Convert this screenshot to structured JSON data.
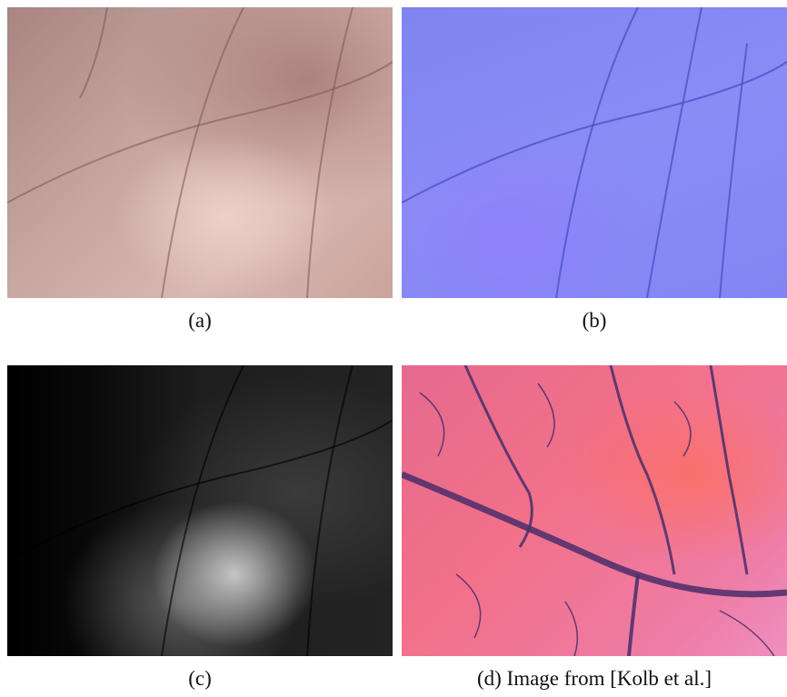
{
  "figure": {
    "panels": [
      {
        "caption": "(a)"
      },
      {
        "caption": "(b)"
      },
      {
        "caption": "(c)"
      },
      {
        "caption": "(d) Image from [Kolb et al.]"
      }
    ]
  }
}
